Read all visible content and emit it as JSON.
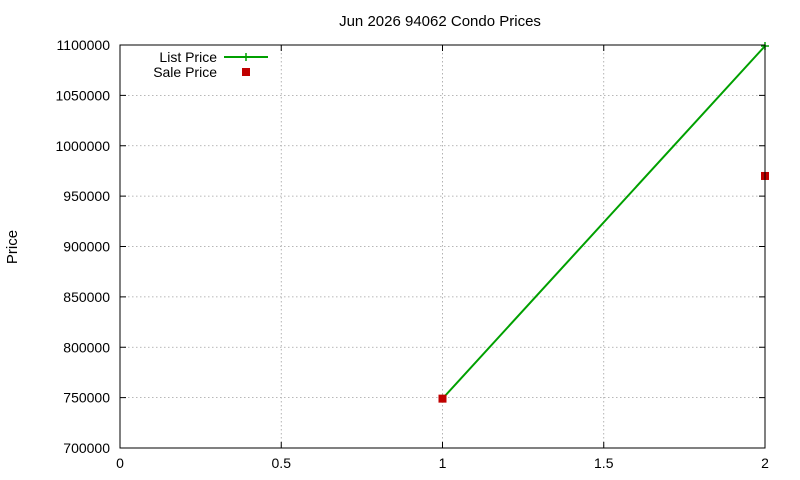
{
  "chart_data": {
    "type": "line",
    "title": "Jun 2026 94062 Condo Prices",
    "xlabel": "",
    "ylabel": "Price",
    "xlim": [
      0,
      2
    ],
    "ylim": [
      700000,
      1100000
    ],
    "x_ticks": [
      0,
      0.5,
      1,
      1.5,
      2
    ],
    "x_tick_labels": [
      "0",
      "0.5",
      "1",
      "1.5",
      "2"
    ],
    "y_ticks": [
      700000,
      750000,
      800000,
      850000,
      900000,
      950000,
      1000000,
      1050000,
      1100000
    ],
    "y_tick_labels": [
      "700000",
      "750000",
      "800000",
      "850000",
      "900000",
      "950000",
      "1000000",
      "1050000",
      "1100000"
    ],
    "grid": true,
    "legend_position": "top-left",
    "series": [
      {
        "name": "List Price",
        "style": "line-with-plus-markers",
        "color": "#00a000",
        "x": [
          1,
          2
        ],
        "values": [
          749000,
          1099000
        ]
      },
      {
        "name": "Sale Price",
        "style": "square-markers",
        "color": "#c00000",
        "x": [
          1,
          2
        ],
        "values": [
          749000,
          970000
        ]
      }
    ]
  }
}
